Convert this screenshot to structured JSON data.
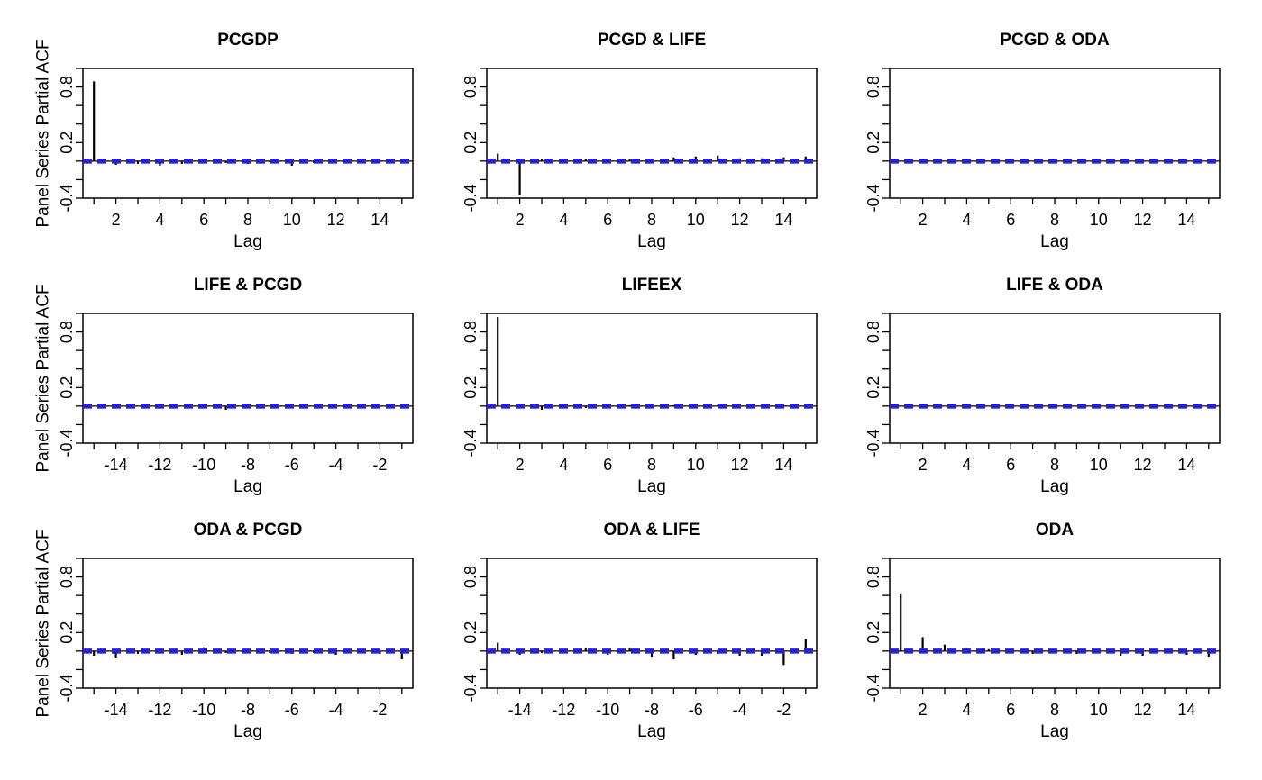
{
  "chart_data": [
    {
      "type": "bar",
      "title": "PCGDP",
      "xlabel": "Lag",
      "ylabel": "Panel Series Partial ACF",
      "ylim": [
        -0.4,
        1.0
      ],
      "xlim": [
        0.5,
        15.5
      ],
      "yticks": [
        "-0.4",
        "0.2",
        "0.8"
      ],
      "xticks": [
        "2",
        "4",
        "6",
        "8",
        "10",
        "12",
        "14"
      ],
      "ci": 0.01,
      "x": [
        1,
        2,
        3,
        4,
        5,
        6,
        7,
        8,
        9,
        10,
        11,
        12,
        13,
        14,
        15
      ],
      "values": [
        0.86,
        -0.04,
        -0.03,
        -0.05,
        -0.03,
        -0.02,
        -0.02,
        -0.03,
        -0.01,
        -0.05,
        -0.02,
        -0.02,
        -0.02,
        -0.01,
        -0.02
      ]
    },
    {
      "type": "bar",
      "title": "PCGD & LIFE",
      "xlabel": "Lag",
      "ylabel": "",
      "ylim": [
        -0.4,
        1.0
      ],
      "xlim": [
        0.5,
        15.5
      ],
      "yticks": [
        "-0.4",
        "0.2",
        "0.8"
      ],
      "xticks": [
        "2",
        "4",
        "6",
        "8",
        "10",
        "12",
        "14"
      ],
      "ci": 0.01,
      "x": [
        1,
        2,
        3,
        4,
        5,
        6,
        7,
        8,
        9,
        10,
        11,
        12,
        13,
        14,
        15
      ],
      "values": [
        0.08,
        -0.37,
        0.02,
        -0.02,
        0.02,
        0.02,
        0.02,
        0.02,
        0.04,
        0.05,
        0.06,
        0.03,
        0.03,
        0.04,
        0.05
      ]
    },
    {
      "type": "bar",
      "title": "PCGD & ODA",
      "xlabel": "Lag",
      "ylabel": "",
      "ylim": [
        -0.4,
        1.0
      ],
      "xlim": [
        0.5,
        15.5
      ],
      "yticks": [
        "-0.4",
        "0.2",
        "0.8"
      ],
      "xticks": [
        "2",
        "4",
        "6",
        "8",
        "10",
        "12",
        "14"
      ],
      "ci": 0.01,
      "x": [
        1,
        2,
        3,
        4,
        5,
        6,
        7,
        8,
        9,
        10,
        11,
        12,
        13,
        14,
        15
      ],
      "values": [
        0.0,
        0.0,
        0.0,
        0.0,
        0.0,
        0.0,
        0.0,
        0.0,
        0.0,
        0.0,
        0.0,
        0.0,
        0.0,
        0.0,
        0.0
      ]
    },
    {
      "type": "bar",
      "title": "LIFE & PCGD",
      "xlabel": "Lag",
      "ylabel": "Panel Series Partial ACF",
      "ylim": [
        -0.4,
        1.0
      ],
      "xlim": [
        -15.5,
        -0.5
      ],
      "yticks": [
        "-0.4",
        "0.2",
        "0.8"
      ],
      "xticks": [
        "-14",
        "-12",
        "-10",
        "-8",
        "-6",
        "-4",
        "-2"
      ],
      "ci": 0.01,
      "x": [
        -15,
        -14,
        -13,
        -12,
        -11,
        -10,
        -9,
        -8,
        -7,
        -6,
        -5,
        -4,
        -3,
        -2,
        -1
      ],
      "values": [
        0.0,
        0.0,
        0.0,
        0.0,
        0.0,
        0.0,
        -0.04,
        0.0,
        0.0,
        0.0,
        0.0,
        0.0,
        0.0,
        0.0,
        0.0
      ]
    },
    {
      "type": "bar",
      "title": "LIFEEX",
      "xlabel": "Lag",
      "ylabel": "",
      "ylim": [
        -0.4,
        1.0
      ],
      "xlim": [
        0.5,
        15.5
      ],
      "yticks": [
        "-0.4",
        "0.2",
        "0.8"
      ],
      "xticks": [
        "2",
        "4",
        "6",
        "8",
        "10",
        "12",
        "14"
      ],
      "ci": 0.01,
      "x": [
        1,
        2,
        3,
        4,
        5,
        6,
        7,
        8,
        9,
        10,
        11,
        12,
        13,
        14,
        15
      ],
      "values": [
        0.96,
        0.02,
        -0.04,
        -0.02,
        -0.02,
        0.01,
        0.01,
        0.01,
        0.01,
        0.01,
        0.01,
        0.01,
        0.01,
        0.01,
        0.01
      ]
    },
    {
      "type": "bar",
      "title": "LIFE & ODA",
      "xlabel": "Lag",
      "ylabel": "",
      "ylim": [
        -0.4,
        1.0
      ],
      "xlim": [
        0.5,
        15.5
      ],
      "yticks": [
        "-0.4",
        "0.2",
        "0.8"
      ],
      "xticks": [
        "2",
        "4",
        "6",
        "8",
        "10",
        "12",
        "14"
      ],
      "ci": 0.01,
      "x": [
        1,
        2,
        3,
        4,
        5,
        6,
        7,
        8,
        9,
        10,
        11,
        12,
        13,
        14,
        15
      ],
      "values": [
        0.0,
        0.0,
        0.0,
        0.0,
        0.0,
        0.0,
        0.0,
        0.0,
        0.0,
        0.0,
        0.0,
        0.0,
        0.0,
        0.0,
        0.0
      ]
    },
    {
      "type": "bar",
      "title": "ODA & PCGD",
      "xlabel": "Lag",
      "ylabel": "Panel Series Partial ACF",
      "ylim": [
        -0.4,
        1.0
      ],
      "xlim": [
        -15.5,
        -0.5
      ],
      "yticks": [
        "-0.4",
        "0.2",
        "0.8"
      ],
      "xticks": [
        "-14",
        "-12",
        "-10",
        "-8",
        "-6",
        "-4",
        "-2"
      ],
      "ci": 0.01,
      "x": [
        -15,
        -14,
        -13,
        -12,
        -11,
        -10,
        -9,
        -8,
        -7,
        -6,
        -5,
        -4,
        -3,
        -2,
        -1
      ],
      "values": [
        -0.05,
        -0.07,
        -0.03,
        -0.02,
        -0.04,
        0.04,
        -0.02,
        -0.02,
        -0.02,
        -0.03,
        -0.02,
        -0.04,
        -0.02,
        -0.03,
        -0.09
      ]
    },
    {
      "type": "bar",
      "title": "ODA & LIFE",
      "xlabel": "Lag",
      "ylabel": "",
      "ylim": [
        -0.4,
        1.0
      ],
      "xlim": [
        -15.5,
        -0.5
      ],
      "yticks": [
        "-0.4",
        "0.2",
        "0.8"
      ],
      "xticks": [
        "-14",
        "-12",
        "-10",
        "-8",
        "-6",
        "-4",
        "-2"
      ],
      "ci": 0.01,
      "x": [
        -15,
        -14,
        -13,
        -12,
        -11,
        -10,
        -9,
        -8,
        -7,
        -6,
        -5,
        -4,
        -3,
        -2,
        -1
      ],
      "values": [
        0.09,
        -0.04,
        -0.02,
        -0.02,
        0.03,
        -0.04,
        0.03,
        -0.06,
        -0.09,
        -0.04,
        -0.03,
        -0.05,
        -0.05,
        -0.15,
        0.13
      ]
    },
    {
      "type": "bar",
      "title": "ODA",
      "xlabel": "Lag",
      "ylabel": "",
      "ylim": [
        -0.4,
        1.0
      ],
      "xlim": [
        0.5,
        15.5
      ],
      "yticks": [
        "-0.4",
        "0.2",
        "0.8"
      ],
      "xticks": [
        "2",
        "4",
        "6",
        "8",
        "10",
        "12",
        "14"
      ],
      "ci": 0.01,
      "x": [
        1,
        2,
        3,
        4,
        5,
        6,
        7,
        8,
        9,
        10,
        11,
        12,
        13,
        14,
        15
      ],
      "values": [
        0.62,
        0.15,
        0.07,
        0.03,
        0.02,
        -0.02,
        -0.03,
        -0.02,
        -0.03,
        -0.02,
        -0.05,
        -0.05,
        -0.02,
        -0.04,
        -0.06
      ]
    }
  ]
}
